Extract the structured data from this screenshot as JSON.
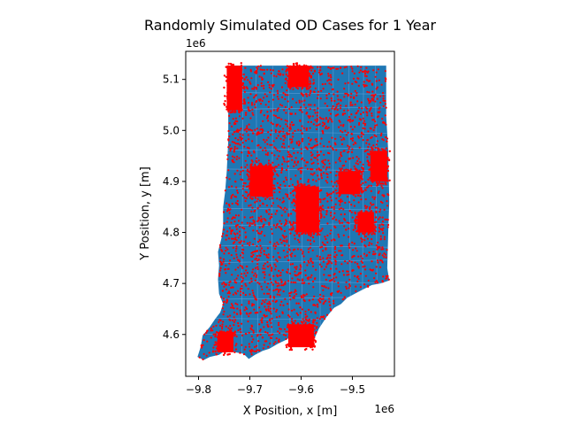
{
  "chart_data": {
    "type": "scatter",
    "title": "Randomly Simulated OD Cases for 1 Year",
    "xlabel": "X Position, x [m]",
    "ylabel": "Y Position, y [m]",
    "x_offset_label": "1e6",
    "y_offset_label": "1e6",
    "xlim": [
      -9.825,
      -9.418
    ],
    "ylim": [
      4.518,
      5.155
    ],
    "x_ticks": [
      {
        "value": -9.8,
        "label": "−9.8"
      },
      {
        "value": -9.7,
        "label": "−9.7"
      },
      {
        "value": -9.6,
        "label": "−9.6"
      },
      {
        "value": -9.5,
        "label": "−9.5"
      }
    ],
    "y_ticks": [
      {
        "value": 4.6,
        "label": "4.6"
      },
      {
        "value": 4.7,
        "label": "4.7"
      },
      {
        "value": 4.8,
        "label": "4.8"
      },
      {
        "value": 4.9,
        "label": "4.9"
      },
      {
        "value": 5.0,
        "label": "5.0"
      },
      {
        "value": 5.1,
        "label": "5.1"
      }
    ],
    "grid": false,
    "legend": "none",
    "colors": {
      "region_fill": "#1f77b4",
      "region_edge": "#5b9bd5",
      "points": "#ff0000"
    },
    "region_outline": [
      [
        -9.742,
        5.127
      ],
      [
        -9.434,
        5.127
      ],
      [
        -9.434,
        5.028
      ],
      [
        -9.43,
        4.96
      ],
      [
        -9.428,
        4.86
      ],
      [
        -9.43,
        4.8
      ],
      [
        -9.432,
        4.73
      ],
      [
        -9.428,
        4.706
      ],
      [
        -9.445,
        4.7
      ],
      [
        -9.462,
        4.697
      ],
      [
        -9.48,
        4.688
      ],
      [
        -9.51,
        4.672
      ],
      [
        -9.522,
        4.66
      ],
      [
        -9.536,
        4.652
      ],
      [
        -9.55,
        4.635
      ],
      [
        -9.565,
        4.612
      ],
      [
        -9.575,
        4.59
      ],
      [
        -9.59,
        4.581
      ],
      [
        -9.605,
        4.58
      ],
      [
        -9.618,
        4.598
      ],
      [
        -9.628,
        4.59
      ],
      [
        -9.645,
        4.582
      ],
      [
        -9.662,
        4.572
      ],
      [
        -9.675,
        4.568
      ],
      [
        -9.69,
        4.56
      ],
      [
        -9.702,
        4.552
      ],
      [
        -9.712,
        4.562
      ],
      [
        -9.728,
        4.565
      ],
      [
        -9.745,
        4.57
      ],
      [
        -9.76,
        4.56
      ],
      [
        -9.778,
        4.556
      ],
      [
        -9.79,
        4.55
      ],
      [
        -9.802,
        4.556
      ],
      [
        -9.796,
        4.575
      ],
      [
        -9.792,
        4.598
      ],
      [
        -9.778,
        4.615
      ],
      [
        -9.768,
        4.63
      ],
      [
        -9.758,
        4.643
      ],
      [
        -9.752,
        4.66
      ],
      [
        -9.76,
        4.68
      ],
      [
        -9.762,
        4.708
      ],
      [
        -9.76,
        4.735
      ],
      [
        -9.762,
        4.762
      ],
      [
        -9.755,
        4.79
      ],
      [
        -9.752,
        4.815
      ],
      [
        -9.752,
        4.85
      ],
      [
        -9.748,
        4.88
      ],
      [
        -9.745,
        4.92
      ],
      [
        -9.742,
        4.98
      ],
      [
        -9.742,
        5.05
      ]
    ],
    "dense_clusters": [
      {
        "x": [
          -9.745,
          -9.715
        ],
        "y": [
          5.04,
          5.127
        ]
      },
      {
        "x": [
          -9.625,
          -9.585
        ],
        "y": [
          5.085,
          5.127
        ]
      },
      {
        "x": [
          -9.7,
          -9.655
        ],
        "y": [
          4.87,
          4.93
        ]
      },
      {
        "x": [
          -9.61,
          -9.565
        ],
        "y": [
          4.8,
          4.89
        ]
      },
      {
        "x": [
          -9.527,
          -9.485
        ],
        "y": [
          4.875,
          4.92
        ]
      },
      {
        "x": [
          -9.465,
          -9.432
        ],
        "y": [
          4.9,
          4.96
        ]
      },
      {
        "x": [
          -9.49,
          -9.458
        ],
        "y": [
          4.8,
          4.84
        ]
      },
      {
        "x": [
          -9.763,
          -9.732
        ],
        "y": [
          4.565,
          4.605
        ]
      },
      {
        "x": [
          -9.625,
          -9.575
        ],
        "y": [
          4.575,
          4.62
        ]
      }
    ],
    "scattered_point_count": 2600
  }
}
